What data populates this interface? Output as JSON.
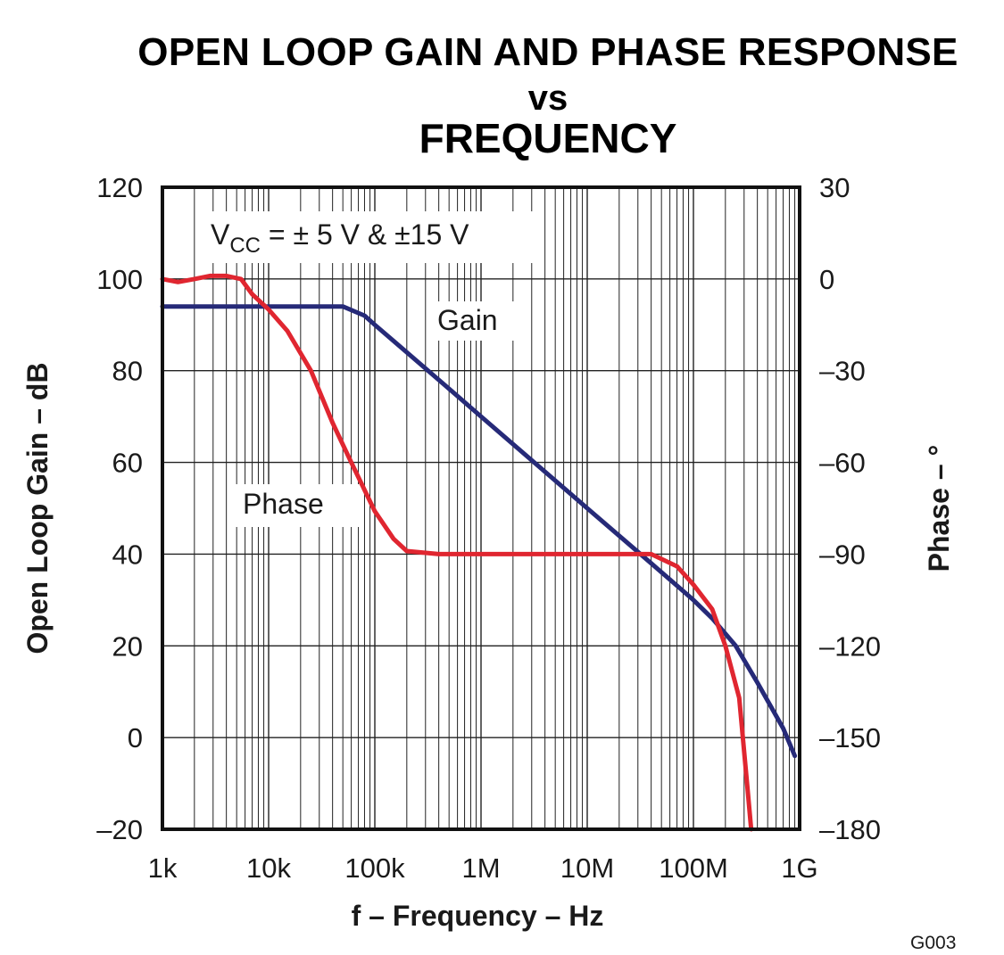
{
  "chart_data": {
    "type": "line",
    "title": "OPEN LOOP GAIN AND PHASE RESPONSE",
    "title_line2": "vs",
    "title_line3": "FREQUENCY",
    "xlabel": "f – Frequency – Hz",
    "ylabel": "Open Loop Gain – dB",
    "y2label": "Phase – °",
    "x_scale": "log",
    "xlim": [
      1000,
      1000000000
    ],
    "ylim": [
      -20,
      120
    ],
    "y2lim": [
      -180,
      30
    ],
    "grid": true,
    "x_ticks": [
      {
        "value": 1000,
        "label": "1k"
      },
      {
        "value": 10000,
        "label": "10k"
      },
      {
        "value": 100000,
        "label": "100k"
      },
      {
        "value": 1000000,
        "label": "1M"
      },
      {
        "value": 10000000,
        "label": "10M"
      },
      {
        "value": 100000000,
        "label": "100M"
      },
      {
        "value": 1000000000,
        "label": "1G"
      }
    ],
    "y_ticks": [
      {
        "value": 120,
        "label": "120"
      },
      {
        "value": 100,
        "label": "100"
      },
      {
        "value": 80,
        "label": "80"
      },
      {
        "value": 60,
        "label": "60"
      },
      {
        "value": 40,
        "label": "40"
      },
      {
        "value": 20,
        "label": "20"
      },
      {
        "value": 0,
        "label": "0"
      },
      {
        "value": -20,
        "label": "–20"
      }
    ],
    "y2_ticks": [
      {
        "value": 30,
        "label": "30"
      },
      {
        "value": 0,
        "label": "0"
      },
      {
        "value": -30,
        "label": "–30"
      },
      {
        "value": -60,
        "label": "–60"
      },
      {
        "value": -90,
        "label": "–90"
      },
      {
        "value": -120,
        "label": "–120"
      },
      {
        "value": -150,
        "label": "–150"
      },
      {
        "value": -180,
        "label": "–180"
      }
    ],
    "condition_label": {
      "main": "V",
      "sub": "CC",
      "rest": " = ± 5 V & ±15 V"
    },
    "series": [
      {
        "name": "Gain",
        "axis": "left",
        "color": "#262a78",
        "x": [
          1000,
          10000,
          50000,
          80000,
          100000,
          200000,
          400000,
          1000000,
          10000000,
          40000000,
          100000000,
          150000000,
          250000000,
          400000000,
          700000000,
          900000000
        ],
        "y": [
          94,
          94,
          94,
          92,
          90,
          84,
          78,
          70,
          50,
          38,
          30,
          26,
          20,
          12,
          2,
          -4
        ]
      },
      {
        "name": "Phase",
        "axis": "right",
        "color": "#e02630",
        "x": [
          1000,
          1400,
          2000,
          2800,
          4000,
          5500,
          7000,
          10000,
          15000,
          25000,
          40000,
          60000,
          100000,
          150000,
          200000,
          400000,
          1000000,
          10000000,
          40000000,
          70000000,
          100000000,
          150000000,
          200000000,
          270000000,
          320000000,
          350000000
        ],
        "y": [
          0,
          -1,
          0,
          1,
          1,
          0,
          -5,
          -10,
          -17,
          -30,
          -47,
          -60,
          -76,
          -85,
          -89,
          -90,
          -90,
          -90,
          -90,
          -94,
          -100,
          -108,
          -120,
          -137,
          -165,
          -180
        ]
      }
    ],
    "series_labels": [
      {
        "text": "Gain",
        "x": 150000,
        "y": 30
      },
      {
        "text": "Phase",
        "x": 5000,
        "y": -66
      }
    ],
    "figure_code": "G003"
  }
}
